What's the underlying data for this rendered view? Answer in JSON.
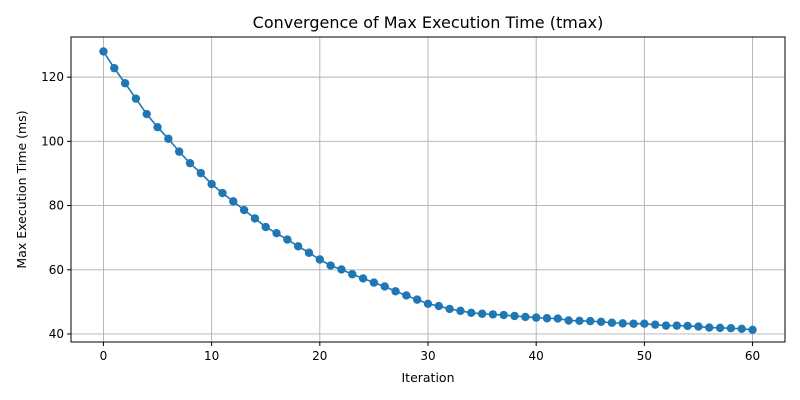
{
  "chart_data": {
    "type": "line",
    "title": "Convergence of Max Execution Time (tmax)",
    "xlabel": "Iteration",
    "ylabel": "Max Execution Time (ms)",
    "xlim": [
      -3,
      63
    ],
    "ylim": [
      37.5,
      132.5
    ],
    "xticks": [
      0,
      10,
      20,
      30,
      40,
      50,
      60
    ],
    "yticks": [
      40,
      60,
      80,
      100,
      120
    ],
    "grid": true,
    "marker": "circle",
    "colors": {
      "series": "#1f77b4"
    },
    "series": [
      {
        "x": [
          0,
          1,
          2,
          3,
          4,
          5,
          6,
          7,
          8,
          9,
          10,
          11,
          12,
          13,
          14,
          15,
          16,
          17,
          18,
          19,
          20,
          21,
          22,
          23,
          24,
          25,
          26,
          27,
          28,
          29,
          30,
          31,
          32,
          33,
          34,
          35,
          36,
          37,
          38,
          39,
          40,
          41,
          42,
          43,
          44,
          45,
          46,
          47,
          48,
          49,
          50,
          51,
          52,
          53,
          54,
          55,
          56,
          57,
          58,
          59,
          60
        ],
        "y": [
          128.0,
          122.8,
          118.1,
          113.3,
          108.5,
          104.4,
          100.8,
          96.8,
          93.2,
          90.1,
          86.7,
          83.9,
          81.3,
          78.6,
          76.0,
          73.3,
          71.4,
          69.4,
          67.3,
          65.3,
          63.2,
          61.3,
          60.1,
          58.6,
          57.3,
          56.0,
          54.8,
          53.3,
          52.0,
          50.7,
          49.4,
          48.7,
          47.8,
          47.2,
          46.6,
          46.3,
          46.1,
          45.9,
          45.6,
          45.3,
          45.1,
          44.9,
          44.8,
          44.2,
          44.1,
          44.0,
          43.8,
          43.5,
          43.3,
          43.2,
          43.2,
          42.9,
          42.6,
          42.6,
          42.5,
          42.3,
          42.0,
          41.9,
          41.8,
          41.6,
          41.3
        ]
      }
    ]
  }
}
